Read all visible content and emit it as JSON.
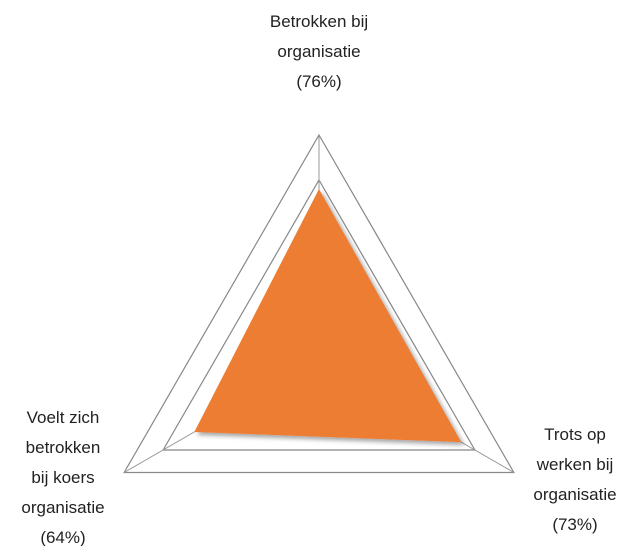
{
  "chart_data": {
    "type": "radar",
    "categories": [
      "Betrokken bij organisatie",
      "Trots op werken bij organisatie",
      "Voelt zich betrokken bij koers organisatie"
    ],
    "values": [
      76,
      73,
      64
    ],
    "value_labels": [
      "(76%)",
      "(73%)",
      "(64%)"
    ],
    "color": "#ed7d31",
    "ylim": [
      0,
      100
    ],
    "yticks": [
      80,
      100
    ],
    "grid": true
  }
}
